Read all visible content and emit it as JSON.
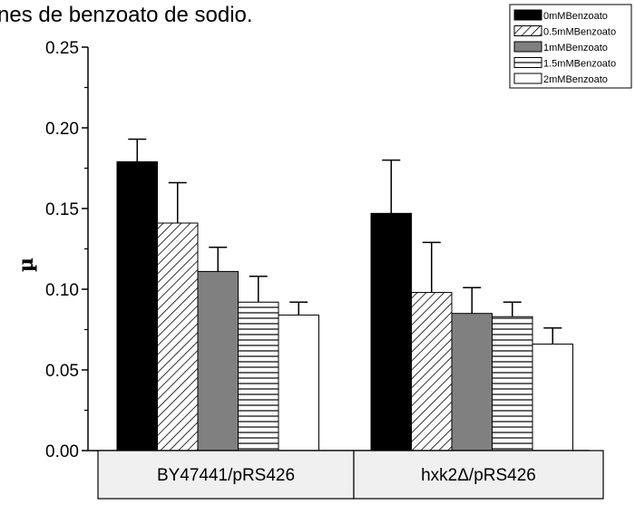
{
  "chart_data": {
    "type": "bar",
    "title": "nes de benzoato de sodio.",
    "ylabel": "µ",
    "xlabel": "",
    "ylim": [
      0,
      0.25
    ],
    "yticks": [
      "0.00",
      "0.05",
      "0.10",
      "0.15",
      "0.20",
      "0.25"
    ],
    "categories": [
      "BY47441/pRS426",
      "hxk2Δ/pRS426"
    ],
    "series": [
      {
        "name": "0mMBenzoato",
        "values": [
          0.179,
          0.147
        ],
        "errors": [
          0.014,
          0.033
        ],
        "fill": "#000000",
        "pattern": "solid"
      },
      {
        "name": "0.5mMBenzoato",
        "values": [
          0.141,
          0.098
        ],
        "errors": [
          0.025,
          0.031
        ],
        "fill": "#ffffff",
        "pattern": "diagonal"
      },
      {
        "name": "1mMBenzoato",
        "values": [
          0.111,
          0.085
        ],
        "errors": [
          0.015,
          0.016
        ],
        "fill": "#808080",
        "pattern": "solid"
      },
      {
        "name": "1.5mMBenzoato",
        "values": [
          0.092,
          0.083
        ],
        "errors": [
          0.016,
          0.009
        ],
        "fill": "#ffffff",
        "pattern": "horizontal"
      },
      {
        "name": "2mMBenzoato",
        "values": [
          0.084,
          0.066
        ],
        "errors": [
          0.008,
          0.01
        ],
        "fill": "#ffffff",
        "pattern": "solid"
      }
    ],
    "legend_position": "top-right",
    "grid": false,
    "category_band_color": "#f0f0f0"
  }
}
